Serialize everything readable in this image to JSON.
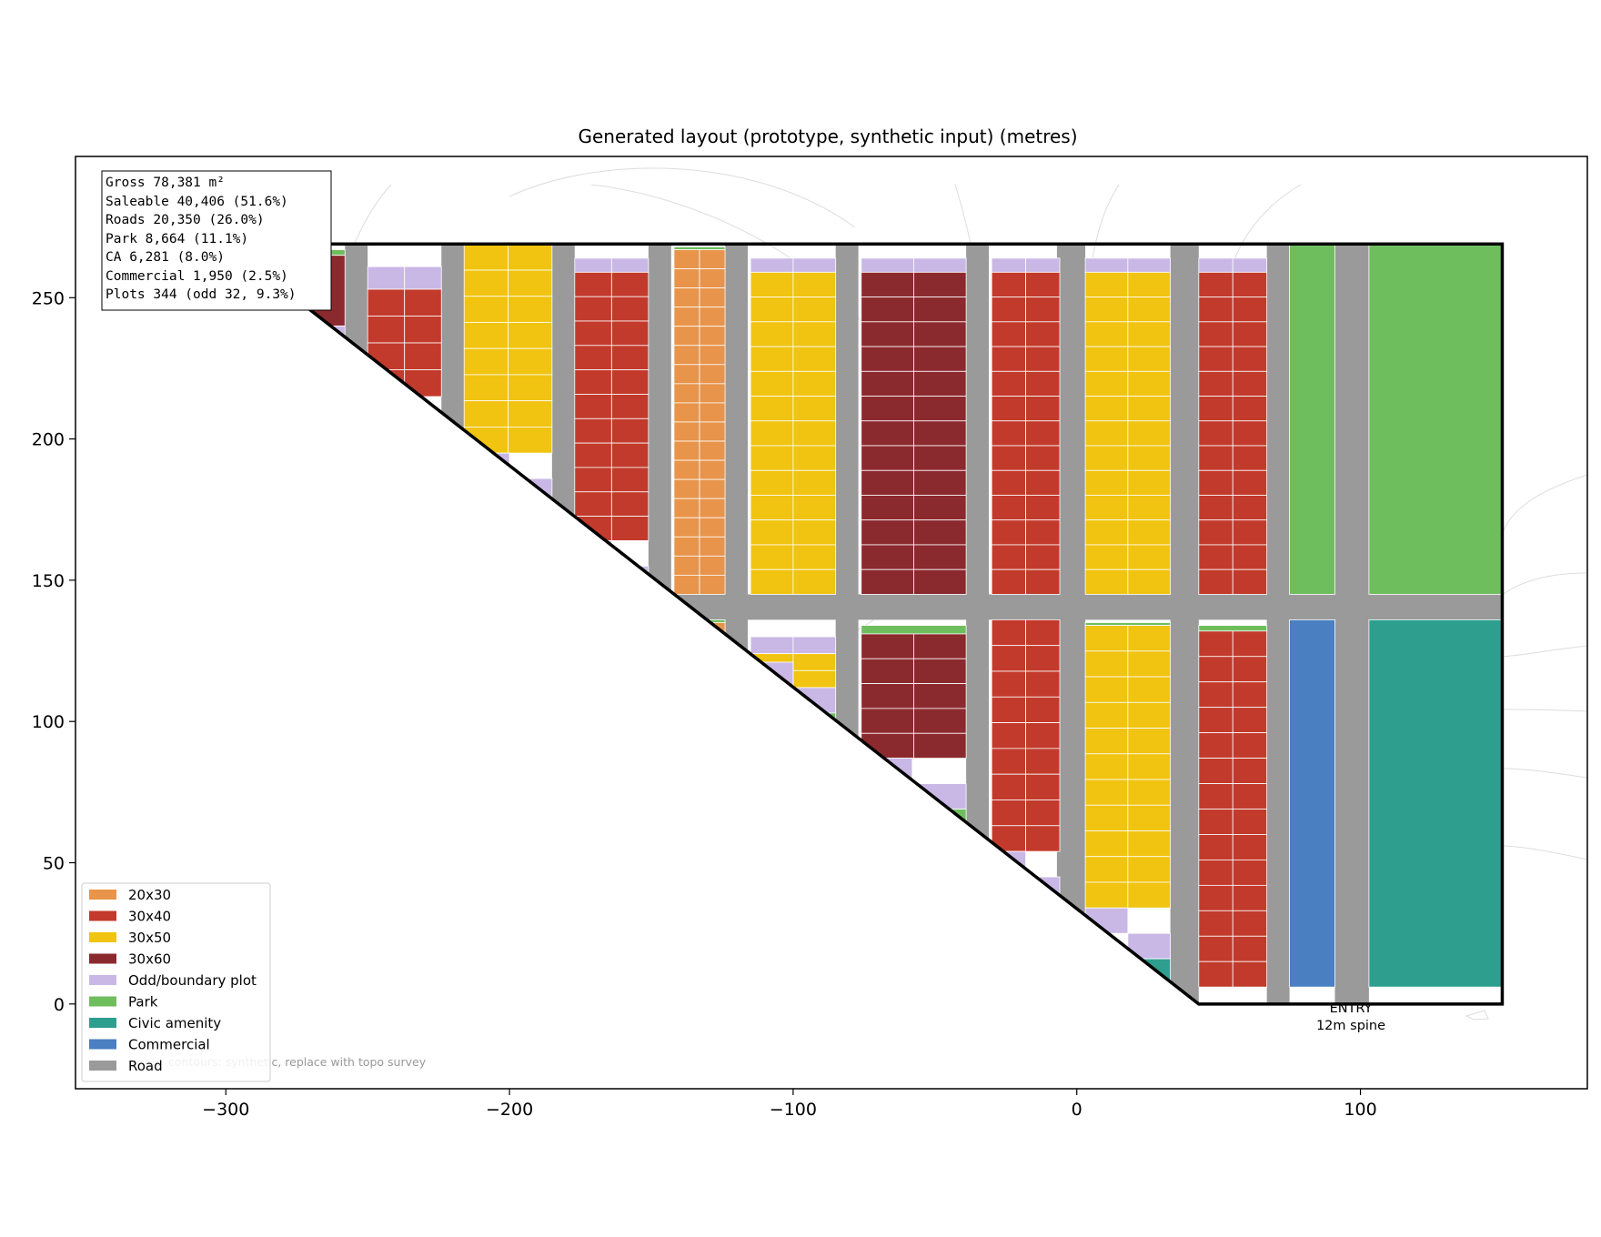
{
  "title": "Generated layout (prototype, synthetic input)  (metres)",
  "axes": {
    "x_range": [
      -353,
      180
    ],
    "y_range": [
      -30,
      300
    ],
    "x_ticks": [
      -300,
      -200,
      -100,
      0,
      100
    ],
    "x_tick_labels": [
      "−300",
      "−200",
      "−100",
      "0",
      "100"
    ],
    "y_ticks": [
      0,
      50,
      100,
      150,
      200,
      250
    ],
    "y_tick_labels": [
      "0",
      "50",
      "100",
      "150",
      "200",
      "250"
    ]
  },
  "stats": [
    "Gross 78,381 m²",
    "Saleable 40,406 (51.6%)",
    "Roads 20,350 (26.0%)",
    "Park 8,664 (11.1%)",
    "CA 6,281 (8.0%)",
    "Commercial 1,950 (2.5%)",
    "Plots 344 (odd 32, 9.3%)"
  ],
  "legend": [
    {
      "key": "20x30",
      "label": "20x30",
      "color": "#e8944a"
    },
    {
      "key": "30x40",
      "label": "30x40",
      "color": "#c23a2c"
    },
    {
      "key": "30x50",
      "label": "30x50",
      "color": "#f0c410"
    },
    {
      "key": "30x60",
      "label": "30x60",
      "color": "#8b2a2e"
    },
    {
      "key": "odd",
      "label": "Odd/boundary plot",
      "color": "#c9b8e6"
    },
    {
      "key": "park",
      "label": "Park",
      "color": "#6fbe5e"
    },
    {
      "key": "civic",
      "label": "Civic amenity",
      "color": "#2e9e8e"
    },
    {
      "key": "commercial",
      "label": "Commercial",
      "color": "#4a7fc1"
    },
    {
      "key": "road",
      "label": "Road",
      "color": "#9a9a9a"
    }
  ],
  "entry_label": [
    "ENTRY",
    "12m spine"
  ],
  "contour_note": "contours: synthetic, replace with topo survey",
  "site_boundary": [
    [
      -300,
      269
    ],
    [
      150,
      269
    ],
    [
      150,
      0
    ],
    [
      43,
      0
    ],
    [
      -300,
      269
    ]
  ],
  "roads": [
    [
      -300,
      145,
      150,
      136
    ],
    [
      -258,
      269,
      -250,
      0
    ],
    [
      -224,
      269,
      -216,
      0
    ],
    [
      -185,
      269,
      -177,
      0
    ],
    [
      -151,
      269,
      -143,
      0
    ],
    [
      -124,
      269,
      -116,
      0
    ],
    [
      -85,
      269,
      -77,
      0
    ],
    [
      -39,
      269,
      -31,
      0
    ],
    [
      -7,
      269,
      3,
      0
    ],
    [
      33,
      269,
      43,
      0
    ],
    [
      67,
      269,
      75,
      0
    ],
    [
      91,
      269,
      103,
      0
    ]
  ],
  "base_fills": [
    [
      43,
      6,
      150,
      0,
      "#ffffff"
    ]
  ],
  "blocks": [
    {
      "x0": -275,
      "x1": -258,
      "y0": 240,
      "y1": 267,
      "cols": 1,
      "rows": 1,
      "type": "30x60",
      "top": "park",
      "topH": 2
    },
    {
      "x0": -250,
      "x1": -224,
      "y0": 215,
      "y1": 261,
      "cols": 2,
      "rows": 4,
      "type": "30x40",
      "top": "odd",
      "topH": 8
    },
    {
      "x0": -216,
      "x1": -185,
      "y0": 195,
      "y1": 269,
      "cols": 2,
      "rows": 8,
      "type": "30x50",
      "top": null,
      "topH": 0
    },
    {
      "x0": -177,
      "x1": -151,
      "y0": 164,
      "y1": 264,
      "cols": 2,
      "rows": 11,
      "type": "30x40",
      "top": "odd",
      "topH": 5
    },
    {
      "x0": -142,
      "x1": -124,
      "y0": 145,
      "y1": 268,
      "cols": 2,
      "rows": 18,
      "type": "20x30",
      "top": "park",
      "topH": 1
    },
    {
      "x0": -115,
      "x1": -85,
      "y0": 145,
      "y1": 264,
      "cols": 2,
      "rows": 13,
      "type": "30x50",
      "top": "odd",
      "topH": 5
    },
    {
      "x0": -76,
      "x1": -39,
      "y0": 145,
      "y1": 264,
      "cols": 2,
      "rows": 13,
      "type": "30x60",
      "top": "odd",
      "topH": 5
    },
    {
      "x0": -30,
      "x1": -6,
      "y0": 145,
      "y1": 264,
      "cols": 2,
      "rows": 13,
      "type": "30x40",
      "top": "odd",
      "topH": 5
    },
    {
      "x0": 3,
      "x1": 33,
      "y0": 145,
      "y1": 264,
      "cols": 2,
      "rows": 13,
      "type": "30x50",
      "top": "odd",
      "topH": 5
    },
    {
      "x0": 43,
      "x1": 67,
      "y0": 145,
      "y1": 264,
      "cols": 2,
      "rows": 13,
      "type": "30x40",
      "top": "odd",
      "topH": 5
    },
    {
      "x0": -115,
      "x1": -85,
      "y0": 112,
      "y1": 130,
      "cols": 2,
      "rows": 2,
      "type": "30x50",
      "top": "odd",
      "topH": 6
    },
    {
      "x0": -76,
      "x1": -39,
      "y0": 87,
      "y1": 134,
      "cols": 2,
      "rows": 5,
      "type": "30x60",
      "top": "park",
      "topH": 3
    },
    {
      "x0": -30,
      "x1": -6,
      "y0": 54,
      "y1": 136,
      "cols": 2,
      "rows": 9,
      "type": "30x40",
      "top": null,
      "topH": 0
    },
    {
      "x0": 3,
      "x1": 33,
      "y0": 34,
      "y1": 135,
      "cols": 2,
      "rows": 11,
      "type": "30x50",
      "top": "park",
      "topH": 1
    },
    {
      "x0": 43,
      "x1": 67,
      "y0": 6,
      "y1": 134,
      "cols": 2,
      "rows": 14,
      "type": "30x40",
      "top": "park",
      "topH": 2
    }
  ],
  "areas": [
    [
      75,
      269,
      91,
      145,
      "park"
    ],
    [
      103,
      269,
      150,
      145,
      "park"
    ],
    [
      75,
      136,
      91,
      6,
      "commercial"
    ],
    [
      103,
      136,
      150,
      6,
      "civic"
    ],
    [
      -142,
      136,
      -124,
      128,
      "park"
    ],
    [
      -133,
      135,
      -124,
      129,
      "20x30"
    ]
  ],
  "boundary_plots": [
    [
      -288,
      240,
      -275,
      234,
      "odd"
    ],
    [
      -275,
      240,
      -258,
      230,
      "odd"
    ],
    [
      -275,
      230,
      -258,
      222,
      "park"
    ],
    [
      -250,
      215,
      -237,
      206,
      "odd"
    ],
    [
      -237,
      205,
      -224,
      197,
      "odd"
    ],
    [
      -216,
      195,
      -200,
      186,
      "odd"
    ],
    [
      -200,
      186,
      -185,
      177,
      "odd"
    ],
    [
      -200,
      177,
      -185,
      169,
      "park"
    ],
    [
      -177,
      164,
      -164,
      155,
      "odd"
    ],
    [
      -164,
      155,
      -151,
      146,
      "odd"
    ],
    [
      -115,
      121,
      -100,
      112,
      "odd"
    ],
    [
      -100,
      112,
      -85,
      103,
      "odd"
    ],
    [
      -100,
      103,
      -85,
      94,
      "park"
    ],
    [
      -76,
      87,
      -58,
      78,
      "odd"
    ],
    [
      -58,
      78,
      -39,
      69,
      "odd"
    ],
    [
      -58,
      69,
      -39,
      61,
      "park"
    ],
    [
      -30,
      54,
      -18,
      45,
      "odd"
    ],
    [
      -18,
      45,
      -6,
      37,
      "odd"
    ],
    [
      3,
      34,
      18,
      25,
      "odd"
    ],
    [
      18,
      25,
      33,
      16,
      "odd"
    ],
    [
      18,
      16,
      33,
      8,
      "civic"
    ]
  ]
}
